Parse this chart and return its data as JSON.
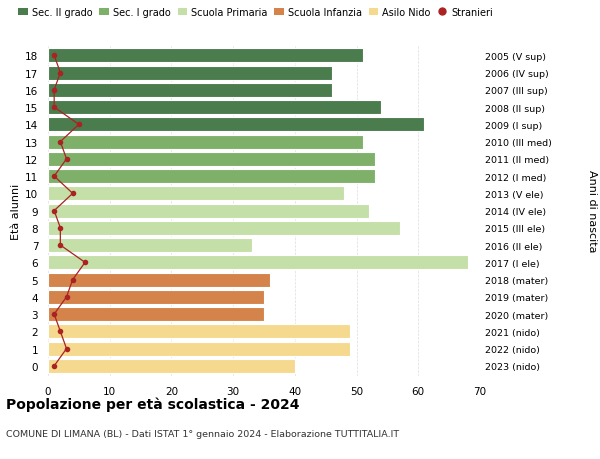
{
  "ages": [
    18,
    17,
    16,
    15,
    14,
    13,
    12,
    11,
    10,
    9,
    8,
    7,
    6,
    5,
    4,
    3,
    2,
    1,
    0
  ],
  "bar_values": [
    51,
    46,
    46,
    54,
    61,
    51,
    53,
    53,
    48,
    52,
    57,
    33,
    68,
    36,
    35,
    35,
    49,
    49,
    40
  ],
  "stranieri": [
    1,
    2,
    1,
    1,
    5,
    2,
    3,
    1,
    4,
    1,
    2,
    2,
    6,
    4,
    3,
    1,
    2,
    3,
    1
  ],
  "right_labels": [
    "2005 (V sup)",
    "2006 (IV sup)",
    "2007 (III sup)",
    "2008 (II sup)",
    "2009 (I sup)",
    "2010 (III med)",
    "2011 (II med)",
    "2012 (I med)",
    "2013 (V ele)",
    "2014 (IV ele)",
    "2015 (III ele)",
    "2016 (II ele)",
    "2017 (I ele)",
    "2018 (mater)",
    "2019 (mater)",
    "2020 (mater)",
    "2021 (nido)",
    "2022 (nido)",
    "2023 (nido)"
  ],
  "bar_colors": [
    "#4a7c4e",
    "#4a7c4e",
    "#4a7c4e",
    "#4a7c4e",
    "#4a7c4e",
    "#7fb069",
    "#7fb069",
    "#7fb069",
    "#c5dfa8",
    "#c5dfa8",
    "#c5dfa8",
    "#c5dfa8",
    "#c5dfa8",
    "#d4844a",
    "#d4844a",
    "#d4844a",
    "#f5d98e",
    "#f5d98e",
    "#f5d98e"
  ],
  "legend_labels": [
    "Sec. II grado",
    "Sec. I grado",
    "Scuola Primaria",
    "Scuola Infanzia",
    "Asilo Nido",
    "Stranieri"
  ],
  "legend_colors": [
    "#4a7c4e",
    "#7fb069",
    "#c5dfa8",
    "#d4844a",
    "#f5d98e",
    "#aa2222"
  ],
  "stranieri_color": "#aa2222",
  "ylabel_left": "Età alunni",
  "ylabel_right": "Anni di nascita",
  "title": "Popolazione per età scolastica - 2024",
  "subtitle": "COMUNE DI LIMANA (BL) - Dati ISTAT 1° gennaio 2024 - Elaborazione TUTTITALIA.IT",
  "xlim": [
    0,
    70
  ],
  "xticks": [
    0,
    10,
    20,
    30,
    40,
    50,
    60,
    70
  ],
  "bg_color": "#ffffff",
  "bar_edgecolor": "#ffffff",
  "grid_color": "#dddddd"
}
